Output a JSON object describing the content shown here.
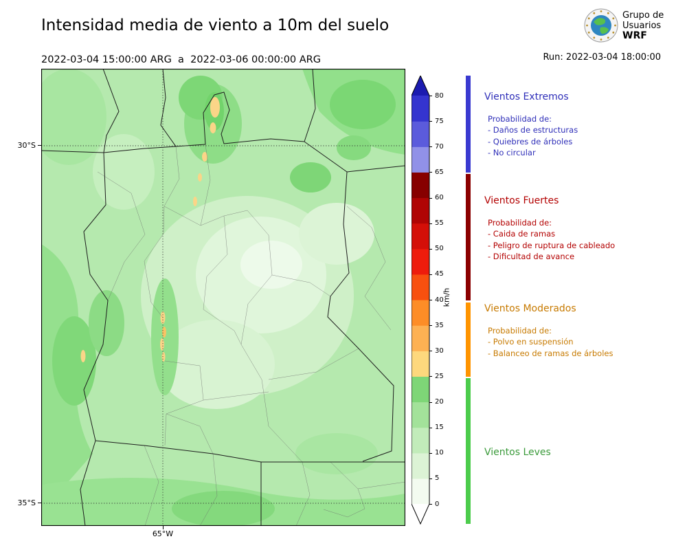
{
  "header": {
    "title": "Intensidad media de viento a 10m del suelo",
    "period": "2022-03-04 15:00:00 ARG  a  2022-03-06 00:00:00 ARG",
    "run": "Run: 2022-03-04 18:00:00",
    "logo": {
      "line1": "Grupo de",
      "line2": "Usuarios",
      "line3": "WRF"
    }
  },
  "map": {
    "lat_ticks": {
      "s30": "30°S",
      "s35": "35°S"
    },
    "lon_ticks": {
      "w65": "65°W"
    }
  },
  "colorbar": {
    "unit": "km/h",
    "tick_labels_top_to_bottom": [
      "80",
      "75",
      "70",
      "65",
      "60",
      "55",
      "50",
      "45",
      "40",
      "35",
      "30",
      "25",
      "20",
      "15",
      "10",
      "5",
      "0"
    ],
    "segments_bottom_to_top": [
      "#f3fbf0",
      "#dcf3d5",
      "#c2ecba",
      "#a3e29a",
      "#7ed677",
      "#fdd87d",
      "#fdb153",
      "#fd8d27",
      "#f8500f",
      "#ee1c0c",
      "#d40f08",
      "#b00404",
      "#870000",
      "#9191e8",
      "#5b5bdc",
      "#3434cf"
    ],
    "over_color": "#1b1bb0",
    "under_color": "#ffffff"
  },
  "legend": {
    "sections": [
      {
        "title": "Vientos Extremos",
        "color": "#2e2eb8",
        "bar_color": "#3a3ad0",
        "subtitle": "Probabilidad de:",
        "items": [
          "- Daños de estructuras",
          "- Quiebres de árboles",
          "- No circular"
        ]
      },
      {
        "title": "Vientos Fuertes",
        "color": "#b30000",
        "bar_color": "#8b0000",
        "subtitle": "Probabilidad de:",
        "items": [
          "- Caida de ramas",
          "- Peligro de ruptura de cableado",
          "- Dificultad de avance"
        ]
      },
      {
        "title": "Vientos Moderados",
        "color": "#c77a00",
        "bar_color": "#ff9400",
        "subtitle": "Probabilidad de:",
        "items": [
          "- Polvo en suspensión",
          "- Balanceo de ramas de árboles"
        ]
      },
      {
        "title": "Vientos Leves",
        "color": "#3a9a3a",
        "bar_color": "#4ccc4c",
        "subtitle": "",
        "items": []
      }
    ]
  },
  "chart_data": {
    "type": "heatmap",
    "title": "Intensidad media de viento a 10m del suelo",
    "unit": "km/h",
    "colorbar_ticks": [
      0,
      5,
      10,
      15,
      20,
      25,
      30,
      35,
      40,
      45,
      50,
      55,
      60,
      65,
      70,
      75,
      80
    ],
    "colorbar_range_extended": "under 0 (white arrow) to over 80 (dark blue arrow)",
    "lat_gridlines": [
      "30°S",
      "35°S"
    ],
    "lon_gridlines": [
      "65°W"
    ],
    "categories_by_color": {
      "green_0_25": "Vientos Leves",
      "orange_25_40": "Vientos Moderados",
      "red_40_65": "Vientos Fuertes",
      "blue_65_plus": "Vientos Extremos"
    }
  }
}
